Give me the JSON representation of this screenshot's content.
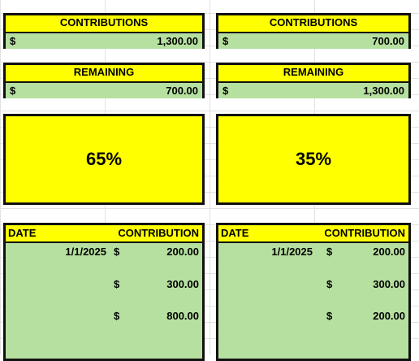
{
  "left": {
    "contributions_header": "CONTRIBUTIONS",
    "contributions_currency": "$",
    "contributions_amount": "1,300.00",
    "remaining_header": "REMAINING",
    "remaining_currency": "$",
    "remaining_amount": "700.00",
    "percent": "65%",
    "table": {
      "date_header": "DATE",
      "contribution_header": "CONTRIBUTION",
      "rows": [
        {
          "date": "1/1/2025",
          "currency": "$",
          "amount": "200.00"
        },
        {
          "date": "",
          "currency": "$",
          "amount": "300.00"
        },
        {
          "date": "",
          "currency": "$",
          "amount": "800.00"
        }
      ]
    }
  },
  "right": {
    "contributions_header": "CONTRIBUTIONS",
    "contributions_currency": "$",
    "contributions_amount": "700.00",
    "remaining_header": "REMAINING",
    "remaining_currency": "$",
    "remaining_amount": "1,300.00",
    "percent": "35%",
    "table": {
      "date_header": "DATE",
      "contribution_header": "CONTRIBUTION",
      "rows": [
        {
          "date": "1/1/2025",
          "currency": "$",
          "amount": "200.00"
        },
        {
          "date": "",
          "currency": "$",
          "amount": "300.00"
        },
        {
          "date": "",
          "currency": "$",
          "amount": "200.00"
        }
      ]
    }
  },
  "colors": {
    "header_yellow": "#ffff00",
    "value_green": "#b6e0a0",
    "border": "#111111",
    "gridline": "#e2e2e2"
  }
}
